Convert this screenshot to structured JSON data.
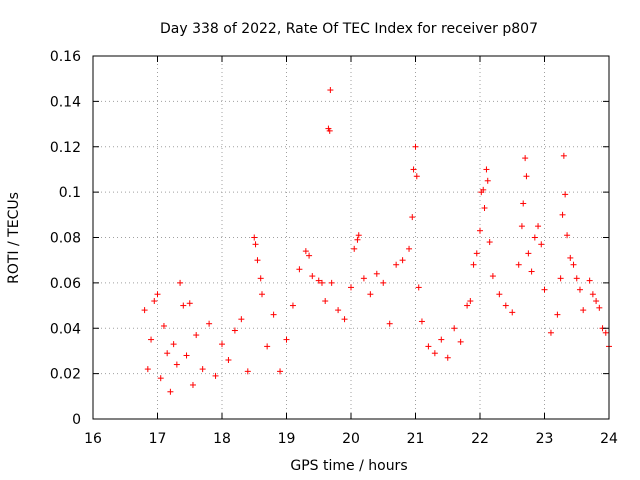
{
  "chart_data": {
    "type": "scatter",
    "title": "Day 338 of 2022, Rate Of TEC Index for receiver p807",
    "xlabel": "GPS time / hours",
    "ylabel": "ROTI / TECUs",
    "xlim": [
      16,
      24
    ],
    "ylim": [
      0,
      0.16
    ],
    "x_ticks": [
      "16",
      "17",
      "18",
      "19",
      "20",
      "21",
      "22",
      "23",
      "24"
    ],
    "y_ticks": [
      "0",
      "0.02",
      "0.04",
      "0.06",
      "0.08",
      "0.1",
      "0.12",
      "0.14",
      "0.16"
    ],
    "grid": true,
    "marker": "+",
    "color": "#ff0000",
    "series": [
      {
        "name": "ROTI",
        "points": [
          [
            16.8,
            0.048
          ],
          [
            16.85,
            0.022
          ],
          [
            16.9,
            0.035
          ],
          [
            16.95,
            0.052
          ],
          [
            17.0,
            0.055
          ],
          [
            17.05,
            0.018
          ],
          [
            17.1,
            0.041
          ],
          [
            17.15,
            0.029
          ],
          [
            17.2,
            0.012
          ],
          [
            17.25,
            0.033
          ],
          [
            17.3,
            0.024
          ],
          [
            17.35,
            0.06
          ],
          [
            17.4,
            0.05
          ],
          [
            17.45,
            0.028
          ],
          [
            17.5,
            0.051
          ],
          [
            17.55,
            0.015
          ],
          [
            17.6,
            0.037
          ],
          [
            17.7,
            0.022
          ],
          [
            17.8,
            0.042
          ],
          [
            17.9,
            0.019
          ],
          [
            18.0,
            0.033
          ],
          [
            18.1,
            0.026
          ],
          [
            18.2,
            0.039
          ],
          [
            18.3,
            0.044
          ],
          [
            18.4,
            0.021
          ],
          [
            18.5,
            0.08
          ],
          [
            18.52,
            0.077
          ],
          [
            18.55,
            0.07
          ],
          [
            18.6,
            0.062
          ],
          [
            18.62,
            0.055
          ],
          [
            18.7,
            0.032
          ],
          [
            18.8,
            0.046
          ],
          [
            18.9,
            0.021
          ],
          [
            19.0,
            0.035
          ],
          [
            19.1,
            0.05
          ],
          [
            19.2,
            0.066
          ],
          [
            19.3,
            0.074
          ],
          [
            19.35,
            0.072
          ],
          [
            19.4,
            0.063
          ],
          [
            19.5,
            0.061
          ],
          [
            19.55,
            0.06
          ],
          [
            19.6,
            0.052
          ],
          [
            19.65,
            0.128
          ],
          [
            19.67,
            0.127
          ],
          [
            19.68,
            0.145
          ],
          [
            19.7,
            0.06
          ],
          [
            19.8,
            0.048
          ],
          [
            19.9,
            0.044
          ],
          [
            20.0,
            0.058
          ],
          [
            20.05,
            0.075
          ],
          [
            20.1,
            0.079
          ],
          [
            20.12,
            0.081
          ],
          [
            20.2,
            0.062
          ],
          [
            20.3,
            0.055
          ],
          [
            20.4,
            0.064
          ],
          [
            20.5,
            0.06
          ],
          [
            20.6,
            0.042
          ],
          [
            20.7,
            0.068
          ],
          [
            20.8,
            0.07
          ],
          [
            20.9,
            0.075
          ],
          [
            20.95,
            0.089
          ],
          [
            20.97,
            0.11
          ],
          [
            21.0,
            0.12
          ],
          [
            21.02,
            0.107
          ],
          [
            21.05,
            0.058
          ],
          [
            21.1,
            0.043
          ],
          [
            21.2,
            0.032
          ],
          [
            21.3,
            0.029
          ],
          [
            21.4,
            0.035
          ],
          [
            21.5,
            0.027
          ],
          [
            21.6,
            0.04
          ],
          [
            21.7,
            0.034
          ],
          [
            21.8,
            0.05
          ],
          [
            21.85,
            0.052
          ],
          [
            21.9,
            0.068
          ],
          [
            21.95,
            0.073
          ],
          [
            22.0,
            0.083
          ],
          [
            22.02,
            0.1
          ],
          [
            22.05,
            0.101
          ],
          [
            22.07,
            0.093
          ],
          [
            22.1,
            0.11
          ],
          [
            22.12,
            0.105
          ],
          [
            22.15,
            0.078
          ],
          [
            22.2,
            0.063
          ],
          [
            22.3,
            0.055
          ],
          [
            22.4,
            0.05
          ],
          [
            22.5,
            0.047
          ],
          [
            22.6,
            0.068
          ],
          [
            22.65,
            0.085
          ],
          [
            22.67,
            0.095
          ],
          [
            22.7,
            0.115
          ],
          [
            22.72,
            0.107
          ],
          [
            22.75,
            0.073
          ],
          [
            22.8,
            0.065
          ],
          [
            22.85,
            0.08
          ],
          [
            22.9,
            0.085
          ],
          [
            22.95,
            0.077
          ],
          [
            23.0,
            0.057
          ],
          [
            23.1,
            0.038
          ],
          [
            23.2,
            0.046
          ],
          [
            23.25,
            0.062
          ],
          [
            23.28,
            0.09
          ],
          [
            23.3,
            0.116
          ],
          [
            23.32,
            0.099
          ],
          [
            23.35,
            0.081
          ],
          [
            23.4,
            0.071
          ],
          [
            23.45,
            0.068
          ],
          [
            23.5,
            0.062
          ],
          [
            23.55,
            0.057
          ],
          [
            23.6,
            0.048
          ],
          [
            23.7,
            0.061
          ],
          [
            23.75,
            0.055
          ],
          [
            23.8,
            0.052
          ],
          [
            23.85,
            0.049
          ],
          [
            23.9,
            0.04
          ],
          [
            23.95,
            0.038
          ],
          [
            24.0,
            0.032
          ]
        ]
      }
    ]
  }
}
